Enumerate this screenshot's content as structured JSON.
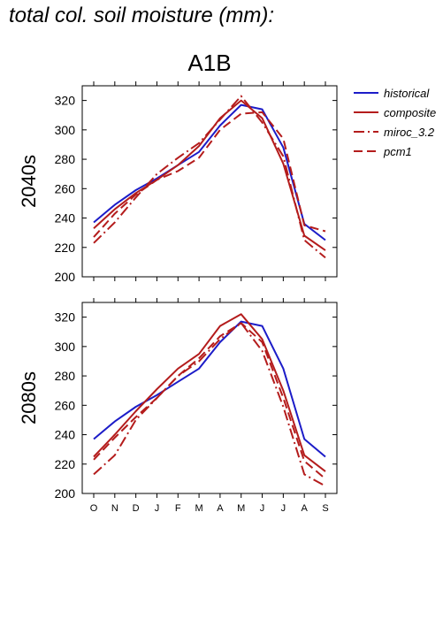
{
  "title": "total col. soil moisture (mm):",
  "chart_data": [
    {
      "type": "line",
      "title": "A1B",
      "ylabel": "2040s",
      "categories": [
        "O",
        "N",
        "D",
        "J",
        "F",
        "M",
        "A",
        "M",
        "J",
        "J",
        "A",
        "S"
      ],
      "ylim": [
        200,
        330
      ],
      "yticks": [
        200,
        220,
        240,
        260,
        280,
        300,
        320
      ],
      "grid": false,
      "series": [
        {
          "name": "historical",
          "color": "#1c1cc8",
          "dash": "solid",
          "values": [
            237,
            249,
            259,
            267,
            276,
            285,
            303,
            317,
            314,
            288,
            236,
            225
          ]
        },
        {
          "name": "composite",
          "color": "#b41c1c",
          "dash": "solid",
          "values": [
            233,
            246,
            257,
            266,
            276,
            289,
            308,
            320,
            308,
            277,
            228,
            218
          ]
        },
        {
          "name": "miroc_3.2",
          "color": "#b41c1c",
          "dash": "dashdot",
          "values": [
            223,
            237,
            254,
            270,
            281,
            291,
            307,
            323,
            305,
            282,
            225,
            213
          ]
        },
        {
          "name": "pcm1",
          "color": "#b41c1c",
          "dash": "dashed",
          "values": [
            227,
            243,
            256,
            266,
            272,
            281,
            300,
            311,
            312,
            294,
            235,
            231
          ]
        }
      ]
    },
    {
      "type": "line",
      "ylabel": "2080s",
      "categories": [
        "O",
        "N",
        "D",
        "J",
        "F",
        "M",
        "A",
        "M",
        "J",
        "J",
        "A",
        "S"
      ],
      "ylim": [
        200,
        330
      ],
      "yticks": [
        200,
        220,
        240,
        260,
        280,
        300,
        320
      ],
      "grid": false,
      "series": [
        {
          "name": "historical",
          "color": "#1c1cc8",
          "dash": "solid",
          "values": [
            237,
            249,
            259,
            267,
            276,
            285,
            303,
            317,
            314,
            285,
            237,
            225
          ]
        },
        {
          "name": "composite",
          "color": "#b41c1c",
          "dash": "solid",
          "values": [
            225,
            240,
            256,
            271,
            285,
            295,
            314,
            322,
            305,
            270,
            226,
            215
          ]
        },
        {
          "name": "miroc_3.2",
          "color": "#b41c1c",
          "dash": "dashdot",
          "values": [
            213,
            226,
            250,
            265,
            280,
            290,
            305,
            316,
            297,
            259,
            213,
            205
          ]
        },
        {
          "name": "pcm1",
          "color": "#b41c1c",
          "dash": "dashed",
          "values": [
            223,
            238,
            252,
            265,
            280,
            292,
            307,
            316,
            303,
            265,
            222,
            210
          ]
        }
      ]
    }
  ],
  "legend": {
    "placement": "right",
    "entries": [
      {
        "label": "historical",
        "color": "#1c1cc8",
        "dash": "solid"
      },
      {
        "label": "composite",
        "color": "#b41c1c",
        "dash": "solid"
      },
      {
        "label": "miroc_3.2",
        "color": "#b41c1c",
        "dash": "dashdot"
      },
      {
        "label": "pcm1",
        "color": "#b41c1c",
        "dash": "dashed"
      }
    ]
  }
}
